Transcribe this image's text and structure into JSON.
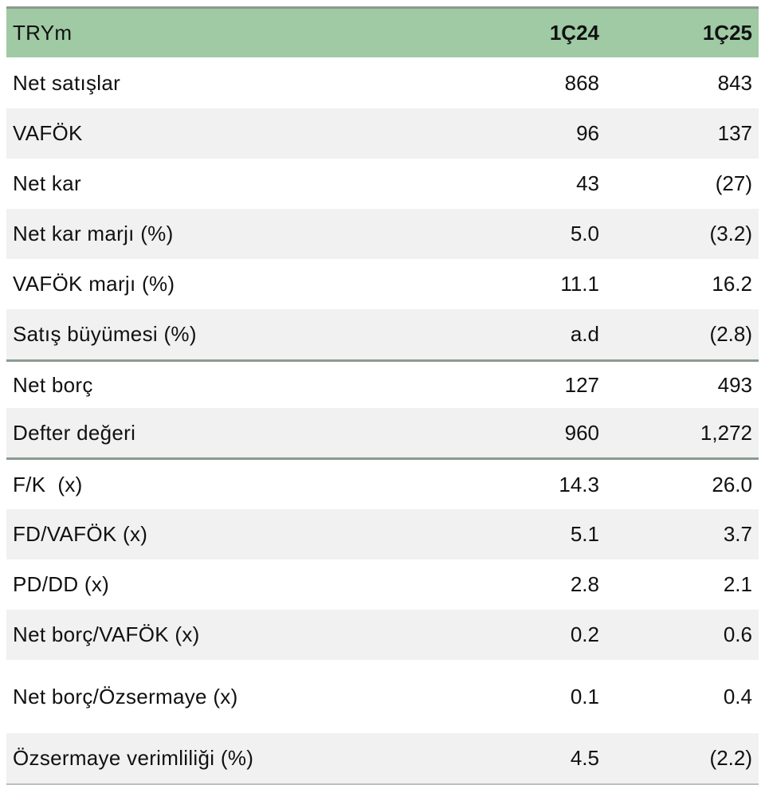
{
  "header": {
    "label": "TRYm",
    "col1": "1Ç24",
    "col2": "1Ç25"
  },
  "group1": [
    {
      "label": "Net satışlar",
      "v1": "868",
      "v2": "843"
    },
    {
      "label": "VAFÖK",
      "v1": "96",
      "v2": "137"
    },
    {
      "label": "Net kar",
      "v1": "43",
      "v2": "(27)"
    },
    {
      "label": "Net kar marjı (%)",
      "v1": "5.0",
      "v2": "(3.2)"
    },
    {
      "label": "VAFÖK marjı (%)",
      "v1": "11.1",
      "v2": "16.2"
    },
    {
      "label": "Satış büyümesi (%)",
      "v1": "a.d",
      "v2": "(2.8)"
    }
  ],
  "group2": [
    {
      "label": "Net borç",
      "v1": "127",
      "v2": "493"
    },
    {
      "label": "Defter değeri",
      "v1": "960",
      "v2": "1,272"
    }
  ],
  "group3": [
    {
      "label": "F/K  (x)",
      "v1": "14.3",
      "v2": "26.0"
    },
    {
      "label": "FD/VAFÖK (x)",
      "v1": "5.1",
      "v2": "3.7"
    },
    {
      "label": "PD/DD (x)",
      "v1": "2.8",
      "v2": "2.1"
    },
    {
      "label": "Net borç/VAFÖK (x)",
      "v1": "0.2",
      "v2": "0.6"
    },
    {
      "label": "Net borç/Özsermaye (x)",
      "v1": "0.1",
      "v2": "0.4"
    },
    {
      "label": "Özsermaye verimliliği (%)",
      "v1": "4.5",
      "v2": "(2.2)"
    }
  ]
}
